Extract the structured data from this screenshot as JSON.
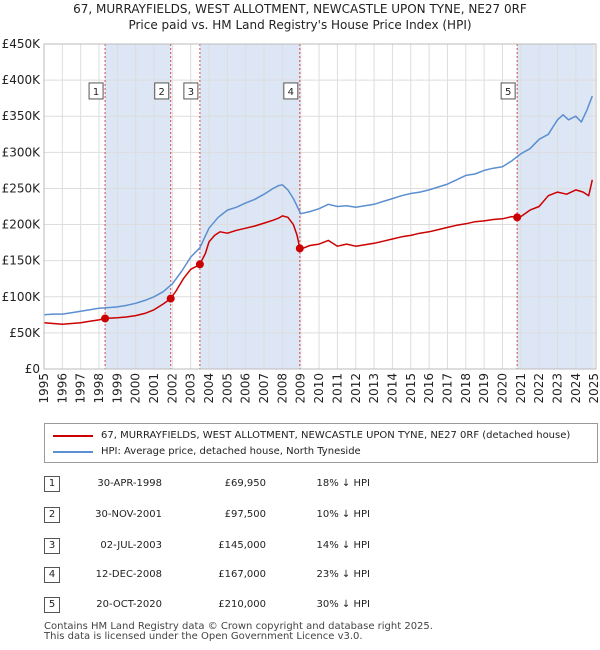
{
  "title_line1": "67, MURRAYFIELDS, WEST ALLOTMENT, NEWCASTLE UPON TYNE, NE27 0RF",
  "title_line2": "Price paid vs. HM Land Registry's House Price Index (HPI)",
  "colors": {
    "property": "#cc0000",
    "hpi": "#5b8fd0",
    "shade": "#dde6f5",
    "grid": "#dddddd"
  },
  "chart_data": {
    "type": "line",
    "title": "67, MURRAYFIELDS, WEST ALLOTMENT, NEWCASTLE UPON TYNE, NE27 0RF",
    "subtitle": "Price paid vs. HM Land Registry's House Price Index (HPI)",
    "xlabel": "",
    "ylabel": "",
    "xlim": [
      1995,
      2025.1
    ],
    "ylim": [
      0,
      450000
    ],
    "grid": true,
    "y_ticks": [
      0,
      50000,
      100000,
      150000,
      200000,
      250000,
      300000,
      350000,
      400000,
      450000
    ],
    "y_tick_labels": [
      "£0",
      "£50K",
      "£100K",
      "£150K",
      "£200K",
      "£250K",
      "£300K",
      "£350K",
      "£400K",
      "£450K"
    ],
    "x_ticks": [
      1995,
      1996,
      1997,
      1998,
      1999,
      2000,
      2001,
      2002,
      2003,
      2004,
      2005,
      2006,
      2007,
      2008,
      2009,
      2010,
      2011,
      2012,
      2013,
      2014,
      2015,
      2016,
      2017,
      2018,
      2019,
      2020,
      2021,
      2022,
      2023,
      2024,
      2025
    ],
    "x_tick_labels": [
      "1995",
      "1996",
      "1997",
      "1998",
      "1999",
      "2000",
      "2001",
      "2002",
      "2003",
      "2004",
      "2005",
      "2006",
      "2007",
      "2008",
      "2009",
      "2010",
      "2011",
      "2012",
      "2013",
      "2014",
      "2015",
      "2016",
      "2017",
      "2018",
      "2019",
      "2020",
      "2021",
      "2022",
      "2023",
      "2024",
      "2025"
    ],
    "series": [
      {
        "name": "67, MURRAYFIELDS, WEST ALLOTMENT, NEWCASTLE UPON TYNE, NE27 0RF (detached house)",
        "color": "#cc0000",
        "x": [
          1995.0,
          1995.5,
          1996.0,
          1996.5,
          1997.0,
          1997.5,
          1998.0,
          1998.33,
          1998.6,
          1999.0,
          1999.5,
          2000.0,
          2000.5,
          2001.0,
          2001.5,
          2001.91,
          2002.2,
          2002.6,
          2003.0,
          2003.3,
          2003.5,
          2003.8,
          2004.0,
          2004.3,
          2004.6,
          2005.0,
          2005.5,
          2006.0,
          2006.5,
          2007.0,
          2007.5,
          2007.8,
          2008.0,
          2008.3,
          2008.6,
          2008.8,
          2008.95,
          2009.2,
          2009.5,
          2010.0,
          2010.5,
          2011.0,
          2011.5,
          2012.0,
          2012.5,
          2013.0,
          2013.5,
          2014.0,
          2014.5,
          2015.0,
          2015.5,
          2016.0,
          2016.5,
          2017.0,
          2017.5,
          2018.0,
          2018.5,
          2019.0,
          2019.5,
          2020.0,
          2020.5,
          2020.8,
          2021.0,
          2021.5,
          2022.0,
          2022.5,
          2023.0,
          2023.5,
          2024.0,
          2024.4,
          2024.7,
          2024.9
        ],
        "values": [
          64000,
          63000,
          62000,
          63000,
          64000,
          66000,
          68000,
          69950,
          70500,
          71000,
          72000,
          74000,
          77000,
          82000,
          90000,
          97500,
          108000,
          125000,
          138000,
          142000,
          145000,
          160000,
          176000,
          185000,
          190000,
          188000,
          192000,
          195000,
          198000,
          202000,
          206000,
          209000,
          212000,
          210000,
          200000,
          185000,
          167000,
          168000,
          171000,
          173000,
          178000,
          170000,
          173000,
          170000,
          172000,
          174000,
          177000,
          180000,
          183000,
          185000,
          188000,
          190000,
          193000,
          196000,
          199000,
          201000,
          204000,
          205000,
          207000,
          208000,
          211000,
          210000,
          211000,
          220000,
          225000,
          240000,
          245000,
          242000,
          248000,
          245000,
          240000,
          262000
        ]
      },
      {
        "name": "HPI: Average price, detached house, North Tyneside",
        "color": "#5b8fd0",
        "x": [
          1995.0,
          1995.5,
          1996.0,
          1996.5,
          1997.0,
          1997.5,
          1998.0,
          1998.5,
          1999.0,
          1999.5,
          2000.0,
          2000.5,
          2001.0,
          2001.5,
          2002.0,
          2002.5,
          2003.0,
          2003.5,
          2004.0,
          2004.5,
          2005.0,
          2005.5,
          2006.0,
          2006.5,
          2007.0,
          2007.5,
          2007.8,
          2008.0,
          2008.3,
          2008.6,
          2009.0,
          2009.5,
          2010.0,
          2010.5,
          2011.0,
          2011.5,
          2012.0,
          2012.5,
          2013.0,
          2013.5,
          2014.0,
          2014.5,
          2015.0,
          2015.5,
          2016.0,
          2016.5,
          2017.0,
          2017.5,
          2018.0,
          2018.5,
          2019.0,
          2019.5,
          2020.0,
          2020.5,
          2021.0,
          2021.5,
          2022.0,
          2022.5,
          2023.0,
          2023.3,
          2023.6,
          2024.0,
          2024.3,
          2024.6,
          2024.9
        ],
        "values": [
          75000,
          76000,
          76000,
          78000,
          80000,
          82000,
          84000,
          85000,
          86000,
          88000,
          91000,
          95000,
          100000,
          107000,
          118000,
          135000,
          155000,
          168000,
          195000,
          210000,
          220000,
          224000,
          230000,
          235000,
          242000,
          250000,
          254000,
          255000,
          248000,
          236000,
          215000,
          218000,
          222000,
          228000,
          225000,
          226000,
          224000,
          226000,
          228000,
          232000,
          236000,
          240000,
          243000,
          245000,
          248000,
          252000,
          256000,
          262000,
          268000,
          270000,
          275000,
          278000,
          280000,
          288000,
          298000,
          305000,
          318000,
          325000,
          345000,
          352000,
          345000,
          350000,
          342000,
          358000,
          378000
        ]
      }
    ],
    "sales": [
      {
        "n": "1",
        "x": 1998.33,
        "value": 69950
      },
      {
        "n": "2",
        "x": 2001.91,
        "value": 97500
      },
      {
        "n": "3",
        "x": 2003.5,
        "value": 145000
      },
      {
        "n": "4",
        "x": 2008.95,
        "value": 167000
      },
      {
        "n": "5",
        "x": 2020.8,
        "value": 210000
      }
    ],
    "shaded_spans": [
      [
        1998.33,
        2001.91
      ],
      [
        2003.5,
        2008.95
      ],
      [
        2020.8,
        2024.95
      ]
    ],
    "annotation_box_value": 385000
  },
  "legend": {
    "property": "67, MURRAYFIELDS, WEST ALLOTMENT, NEWCASTLE UPON TYNE, NE27 0RF (detached house)",
    "hpi": "HPI: Average price, detached house, North Tyneside"
  },
  "table": [
    {
      "n": "1",
      "date": "30-APR-1998",
      "price": "£69,950",
      "hpi": "18% ↓ HPI"
    },
    {
      "n": "2",
      "date": "30-NOV-2001",
      "price": "£97,500",
      "hpi": "10% ↓ HPI"
    },
    {
      "n": "3",
      "date": "02-JUL-2003",
      "price": "£145,000",
      "hpi": "14% ↓ HPI"
    },
    {
      "n": "4",
      "date": "12-DEC-2008",
      "price": "£167,000",
      "hpi": "23% ↓ HPI"
    },
    {
      "n": "5",
      "date": "20-OCT-2020",
      "price": "£210,000",
      "hpi": "30% ↓ HPI"
    }
  ],
  "footer": {
    "line1": "Contains HM Land Registry data © Crown copyright and database right 2025.",
    "line2": "This data is licensed under the Open Government Licence v3.0."
  }
}
